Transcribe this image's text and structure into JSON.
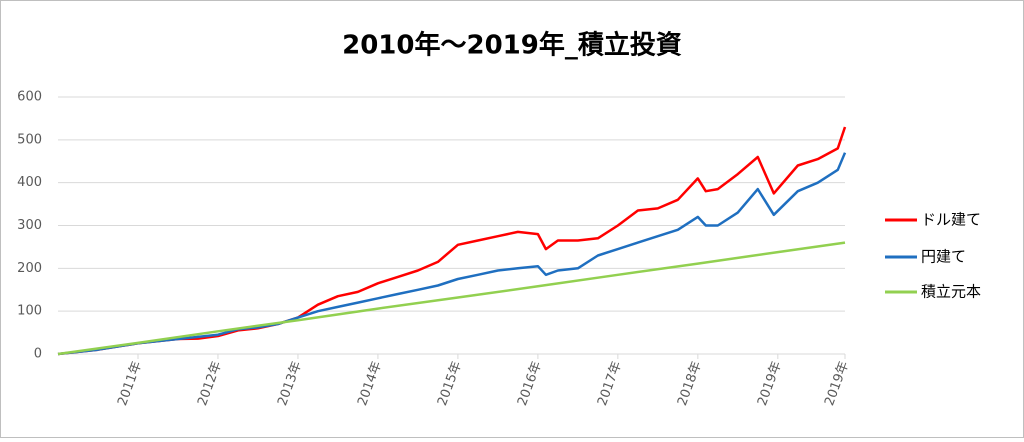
{
  "chart_data": {
    "type": "line",
    "title": "2010年～2019年_積立投資",
    "xlim": [
      2010,
      2019.84
    ],
    "ylim": [
      0,
      600
    ],
    "yticks": [
      0,
      100,
      200,
      300,
      400,
      500,
      600
    ],
    "xticks": [
      {
        "value": 2011,
        "label": "2011年"
      },
      {
        "value": 2012,
        "label": "2012年"
      },
      {
        "value": 2013,
        "label": "2013年"
      },
      {
        "value": 2014,
        "label": "2014年"
      },
      {
        "value": 2015,
        "label": "2015年"
      },
      {
        "value": 2016,
        "label": "2016年"
      },
      {
        "value": 2017,
        "label": "2017年"
      },
      {
        "value": 2018,
        "label": "2018年"
      },
      {
        "value": 2019,
        "label": "2019年"
      },
      {
        "value": 2019.84,
        "label": "2019年"
      }
    ],
    "grid": true,
    "legend": "right",
    "series": [
      {
        "name": "ドル建て",
        "color": "#ff0000",
        "x": [
          2010,
          2010.5,
          2011,
          2011.5,
          2011.75,
          2012,
          2012.25,
          2012.5,
          2012.75,
          2013,
          2013.25,
          2013.5,
          2013.75,
          2014,
          2014.25,
          2014.5,
          2014.75,
          2015,
          2015.25,
          2015.5,
          2015.75,
          2016,
          2016.1,
          2016.25,
          2016.5,
          2016.75,
          2017,
          2017.25,
          2017.5,
          2017.75,
          2018,
          2018.1,
          2018.25,
          2018.5,
          2018.75,
          2018.95,
          2019.25,
          2019.5,
          2019.75,
          2019.84
        ],
        "values": [
          0,
          10,
          25,
          35,
          36,
          42,
          55,
          60,
          70,
          85,
          115,
          135,
          145,
          165,
          180,
          195,
          215,
          255,
          265,
          275,
          285,
          280,
          245,
          265,
          265,
          270,
          300,
          335,
          340,
          360,
          410,
          380,
          385,
          420,
          460,
          375,
          440,
          455,
          480,
          530
        ]
      },
      {
        "name": "円建て",
        "color": "#1f6fc0",
        "x": [
          2010,
          2010.5,
          2011,
          2011.5,
          2011.75,
          2012,
          2012.25,
          2012.5,
          2012.75,
          2013,
          2013.25,
          2013.5,
          2013.75,
          2014,
          2014.25,
          2014.5,
          2014.75,
          2015,
          2015.25,
          2015.5,
          2015.75,
          2016,
          2016.1,
          2016.25,
          2016.5,
          2016.75,
          2017,
          2017.25,
          2017.5,
          2017.75,
          2018,
          2018.1,
          2018.25,
          2018.5,
          2018.75,
          2018.95,
          2019.25,
          2019.5,
          2019.75,
          2019.84
        ],
        "values": [
          0,
          10,
          25,
          35,
          40,
          45,
          58,
          62,
          70,
          85,
          100,
          110,
          120,
          130,
          140,
          150,
          160,
          175,
          185,
          195,
          200,
          205,
          185,
          195,
          200,
          230,
          245,
          260,
          275,
          290,
          320,
          300,
          300,
          330,
          385,
          325,
          380,
          400,
          430,
          470
        ]
      },
      {
        "name": "積立元本",
        "color": "#92d050",
        "x": [
          2010,
          2011,
          2012,
          2013,
          2014,
          2015,
          2016,
          2017,
          2018,
          2019,
          2019.84
        ],
        "values": [
          0,
          26,
          53,
          79,
          106,
          132,
          158,
          185,
          211,
          238,
          260
        ]
      }
    ]
  }
}
